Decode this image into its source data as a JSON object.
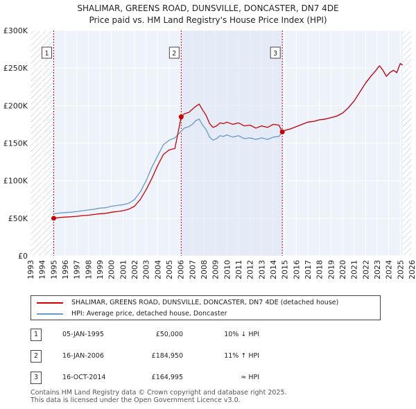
{
  "title_line1": "SHALIMAR, GREENS ROAD, DUNSVILLE, DONCASTER, DN7 4DE",
  "title_line2": "Price paid vs. HM Land Registry's House Price Index (HPI)",
  "chart_data": {
    "type": "line",
    "title": "SHALIMAR, GREENS ROAD, DUNSVILLE, DONCASTER, DN7 4DE — Price paid vs. HM Land Registry's House Price Index (HPI)",
    "xlim": [
      1993,
      2026
    ],
    "ylim": [
      0,
      300000
    ],
    "x_ticks": [
      1993,
      1994,
      1995,
      1996,
      1997,
      1998,
      1999,
      2000,
      2001,
      2002,
      2003,
      2004,
      2005,
      2006,
      2007,
      2008,
      2009,
      2010,
      2011,
      2012,
      2013,
      2014,
      2015,
      2016,
      2017,
      2018,
      2019,
      2020,
      2021,
      2022,
      2023,
      2024,
      2025,
      2026
    ],
    "y_ticks": [
      {
        "value": 0,
        "label": "£0"
      },
      {
        "value": 50000,
        "label": "£50K"
      },
      {
        "value": 100000,
        "label": "£100K"
      },
      {
        "value": 150000,
        "label": "£150K"
      },
      {
        "value": 200000,
        "label": "£200K"
      },
      {
        "value": 250000,
        "label": "£250K"
      },
      {
        "value": 300000,
        "label": "£300K"
      }
    ],
    "grid": true,
    "hatched_ranges": [
      [
        1993,
        1995.01
      ],
      [
        2025.2,
        2026
      ]
    ],
    "colors": {
      "property": "#cc0000",
      "hpi": "#6699cc",
      "band": "#dde6f5",
      "marker": "#cc0000"
    },
    "series": [
      {
        "name": "SHALIMAR, GREENS ROAD, DUNSVILLE, DONCASTER, DN7 4DE (detached house)",
        "color": "#cc0000",
        "x": [
          1995.01,
          1995.5,
          1996,
          1996.5,
          1997,
          1997.5,
          1998,
          1998.5,
          1999,
          1999.5,
          2000,
          2000.5,
          2001,
          2001.5,
          2002,
          2002.5,
          2003,
          2003.5,
          2004,
          2004.5,
          2005,
          2005.5,
          2006.04,
          2006.3,
          2006.7,
          2007,
          2007.3,
          2007.6,
          2007.9,
          2008.2,
          2008.5,
          2008.8,
          2009.1,
          2009.4,
          2009.7,
          2010,
          2010.5,
          2011,
          2011.5,
          2012,
          2012.5,
          2013,
          2013.5,
          2014,
          2014.5,
          2014.79,
          2015,
          2015.5,
          2016,
          2016.5,
          2017,
          2017.5,
          2018,
          2018.5,
          2019,
          2019.5,
          2020,
          2020.5,
          2021,
          2021.5,
          2022,
          2022.5,
          2022.9,
          2023.2,
          2023.5,
          2023.8,
          2024.1,
          2024.4,
          2024.7,
          2025,
          2025.2
        ],
        "y": [
          50000,
          51000,
          51500,
          52000,
          52500,
          53500,
          54000,
          55000,
          56000,
          56500,
          58000,
          59000,
          60000,
          62000,
          66000,
          75000,
          88000,
          103000,
          120000,
          135000,
          141000,
          143000,
          184950,
          189000,
          191000,
          195000,
          199000,
          202000,
          194000,
          187000,
          176000,
          171000,
          173000,
          177000,
          176000,
          178000,
          175000,
          177000,
          173000,
          174000,
          170000,
          173000,
          171000,
          175000,
          174000,
          164995,
          167000,
          169000,
          172000,
          175000,
          178000,
          179000,
          181000,
          182000,
          184000,
          186000,
          190000,
          197000,
          206000,
          218000,
          230000,
          240000,
          247000,
          253000,
          247000,
          239000,
          244000,
          247000,
          244000,
          256000,
          254000
        ]
      },
      {
        "name": "HPI: Average price, detached house, Doncaster",
        "color": "#6699cc",
        "x": [
          1995.01,
          1995.5,
          1996,
          1996.5,
          1997,
          1997.5,
          1998,
          1998.5,
          1999,
          1999.5,
          2000,
          2000.5,
          2001,
          2001.5,
          2002,
          2002.5,
          2003,
          2003.5,
          2004,
          2004.5,
          2005,
          2005.5,
          2006.04,
          2006.3,
          2006.7,
          2007,
          2007.3,
          2007.6,
          2007.9,
          2008.2,
          2008.5,
          2008.8,
          2009.1,
          2009.4,
          2009.7,
          2010,
          2010.5,
          2011,
          2011.5,
          2012,
          2012.5,
          2013,
          2013.5,
          2014,
          2014.5,
          2014.79,
          2015,
          2015.5,
          2016,
          2016.5,
          2017,
          2017.5,
          2018,
          2018.5,
          2019,
          2019.5,
          2020,
          2020.5,
          2021,
          2021.5,
          2022,
          2022.5,
          2022.9,
          2023.2,
          2023.5,
          2023.8,
          2024.1,
          2024.4,
          2024.7,
          2025,
          2025.2
        ],
        "y": [
          56000,
          57000,
          57500,
          58000,
          59000,
          60000,
          61000,
          62000,
          63500,
          64000,
          66000,
          67000,
          68000,
          70000,
          75000,
          85000,
          100000,
          118000,
          133000,
          148000,
          154000,
          157000,
          166000,
          170000,
          172000,
          175000,
          180000,
          182000,
          174000,
          168000,
          158000,
          154000,
          156000,
          160000,
          159000,
          161000,
          158000,
          160000,
          156000,
          157000,
          155000,
          157000,
          155000,
          158000,
          159000,
          164995,
          167000,
          169000,
          172000,
          175000,
          178000,
          179000,
          181000,
          182000,
          184000,
          186000,
          190000,
          197000,
          206000,
          218000,
          230000,
          240000,
          247000,
          253000,
          247000,
          239000,
          244000,
          247000,
          244000,
          256000,
          254000
        ]
      }
    ],
    "sales": [
      {
        "label": "1",
        "x": 1995.01,
        "y": 50000
      },
      {
        "label": "2",
        "x": 2006.04,
        "y": 184950
      },
      {
        "label": "3",
        "x": 2014.79,
        "y": 164995
      }
    ]
  },
  "legend": {
    "property_label": "SHALIMAR, GREENS ROAD, DUNSVILLE, DONCASTER, DN7 4DE (detached house)",
    "hpi_label": "HPI: Average price, detached house, Doncaster"
  },
  "sales_table": [
    {
      "num": "1",
      "date": "05-JAN-1995",
      "price": "£50,000",
      "hpi": "10% ↓ HPI"
    },
    {
      "num": "2",
      "date": "16-JAN-2006",
      "price": "£184,950",
      "hpi": "11% ↑ HPI"
    },
    {
      "num": "3",
      "date": "16-OCT-2014",
      "price": "£164,995",
      "hpi": "≈ HPI"
    }
  ],
  "footer": {
    "line1": "Contains HM Land Registry data © Crown copyright and database right 2025.",
    "line2": "This data is licensed under the Open Government Licence v3.0."
  }
}
